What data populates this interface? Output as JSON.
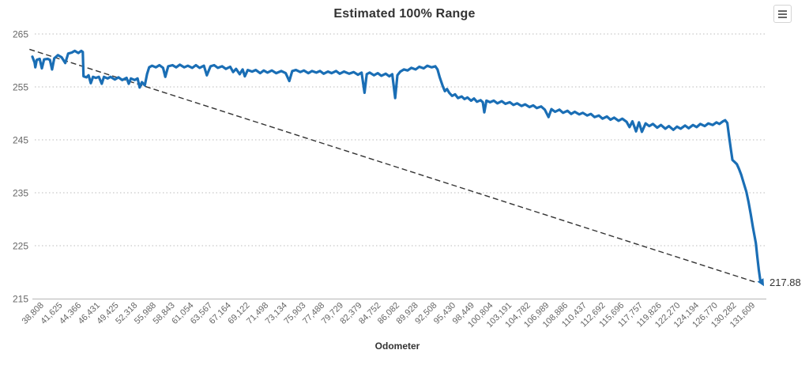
{
  "header": {
    "title": "Estimated 100% Range",
    "context_menu_tooltip": "Chart context menu"
  },
  "chart_data": {
    "type": "line",
    "title": "Estimated 100% Range",
    "xlabel": "Odometer",
    "ylabel": "",
    "ylim": [
      215,
      265
    ],
    "yticks": [
      265,
      255,
      245,
      235,
      225,
      215
    ],
    "grid": "dotted-horizontal",
    "legend": "none",
    "end_label": "217.88",
    "x_categories": [
      "38,808",
      "41,625",
      "44,366",
      "46,431",
      "49,425",
      "52,318",
      "55,988",
      "58,843",
      "61,054",
      "63,567",
      "67,164",
      "69,122",
      "71,498",
      "73,134",
      "75,903",
      "77,488",
      "79,729",
      "82,379",
      "84,752",
      "86,082",
      "89,928",
      "92,508",
      "95,430",
      "98,449",
      "100,804",
      "103,191",
      "104,782",
      "106,989",
      "108,886",
      "110,437",
      "112,692",
      "115,696",
      "117,757",
      "119,826",
      "122,270",
      "124,194",
      "126,770",
      "130,282",
      "131,609"
    ],
    "colors": {
      "series": "#1a6eb5",
      "trend": "#333333",
      "grid": "#bbbbbb",
      "axis_line": "#c0c0c0",
      "tick_text": "#666666",
      "title_text": "#333333"
    },
    "series": [
      {
        "name": "Estimated 100% Range",
        "style": "solid",
        "color": "#1a6eb5",
        "points_xfrac_value": [
          [
            0.0,
            260.7
          ],
          [
            0.003,
            259.6
          ],
          [
            0.004,
            258.7
          ],
          [
            0.006,
            260.1
          ],
          [
            0.01,
            260.3
          ],
          [
            0.013,
            258.5
          ],
          [
            0.016,
            260.2
          ],
          [
            0.021,
            260.3
          ],
          [
            0.024,
            260.1
          ],
          [
            0.027,
            258.3
          ],
          [
            0.03,
            260.4
          ],
          [
            0.035,
            261.0
          ],
          [
            0.04,
            260.6
          ],
          [
            0.045,
            259.5
          ],
          [
            0.049,
            261.3
          ],
          [
            0.054,
            261.5
          ],
          [
            0.058,
            261.8
          ],
          [
            0.063,
            261.4
          ],
          [
            0.067,
            261.8
          ],
          [
            0.069,
            261.6
          ],
          [
            0.07,
            257.0
          ],
          [
            0.074,
            256.8
          ],
          [
            0.077,
            257.2
          ],
          [
            0.08,
            255.7
          ],
          [
            0.083,
            256.9
          ],
          [
            0.087,
            256.7
          ],
          [
            0.091,
            256.9
          ],
          [
            0.095,
            255.6
          ],
          [
            0.098,
            256.9
          ],
          [
            0.103,
            256.6
          ],
          [
            0.107,
            256.9
          ],
          [
            0.113,
            256.4
          ],
          [
            0.118,
            256.8
          ],
          [
            0.123,
            256.3
          ],
          [
            0.129,
            256.7
          ],
          [
            0.132,
            255.6
          ],
          [
            0.135,
            256.6
          ],
          [
            0.14,
            256.3
          ],
          [
            0.144,
            256.6
          ],
          [
            0.147,
            254.9
          ],
          [
            0.15,
            255.9
          ],
          [
            0.154,
            255.3
          ],
          [
            0.157,
            257.4
          ],
          [
            0.16,
            258.7
          ],
          [
            0.164,
            259.0
          ],
          [
            0.169,
            258.7
          ],
          [
            0.174,
            259.1
          ],
          [
            0.179,
            258.6
          ],
          [
            0.182,
            256.9
          ],
          [
            0.186,
            258.9
          ],
          [
            0.192,
            259.1
          ],
          [
            0.197,
            258.7
          ],
          [
            0.202,
            259.2
          ],
          [
            0.208,
            258.7
          ],
          [
            0.213,
            259.0
          ],
          [
            0.219,
            258.6
          ],
          [
            0.224,
            259.1
          ],
          [
            0.229,
            258.6
          ],
          [
            0.235,
            259.0
          ],
          [
            0.239,
            257.2
          ],
          [
            0.244,
            258.9
          ],
          [
            0.249,
            259.1
          ],
          [
            0.254,
            258.6
          ],
          [
            0.26,
            258.9
          ],
          [
            0.265,
            258.4
          ],
          [
            0.271,
            258.8
          ],
          [
            0.275,
            257.8
          ],
          [
            0.279,
            258.4
          ],
          [
            0.284,
            257.4
          ],
          [
            0.288,
            258.3
          ],
          [
            0.291,
            257.0
          ],
          [
            0.295,
            258.2
          ],
          [
            0.301,
            257.9
          ],
          [
            0.306,
            258.2
          ],
          [
            0.312,
            257.6
          ],
          [
            0.317,
            258.1
          ],
          [
            0.322,
            257.7
          ],
          [
            0.328,
            258.1
          ],
          [
            0.334,
            257.6
          ],
          [
            0.341,
            258.0
          ],
          [
            0.347,
            257.6
          ],
          [
            0.352,
            256.1
          ],
          [
            0.356,
            258.0
          ],
          [
            0.361,
            258.2
          ],
          [
            0.367,
            257.8
          ],
          [
            0.372,
            258.1
          ],
          [
            0.378,
            257.6
          ],
          [
            0.383,
            258.0
          ],
          [
            0.389,
            257.7
          ],
          [
            0.394,
            258.0
          ],
          [
            0.399,
            257.5
          ],
          [
            0.405,
            257.9
          ],
          [
            0.41,
            257.6
          ],
          [
            0.416,
            258.0
          ],
          [
            0.421,
            257.5
          ],
          [
            0.427,
            257.9
          ],
          [
            0.434,
            257.5
          ],
          [
            0.44,
            257.8
          ],
          [
            0.446,
            257.3
          ],
          [
            0.451,
            257.7
          ],
          [
            0.455,
            253.9
          ],
          [
            0.458,
            257.4
          ],
          [
            0.462,
            257.7
          ],
          [
            0.468,
            257.2
          ],
          [
            0.473,
            257.6
          ],
          [
            0.478,
            257.1
          ],
          [
            0.484,
            257.5
          ],
          [
            0.489,
            257.0
          ],
          [
            0.493,
            257.4
          ],
          [
            0.497,
            252.9
          ],
          [
            0.5,
            257.2
          ],
          [
            0.504,
            257.9
          ],
          [
            0.509,
            258.3
          ],
          [
            0.514,
            258.1
          ],
          [
            0.519,
            258.6
          ],
          [
            0.525,
            258.3
          ],
          [
            0.53,
            258.8
          ],
          [
            0.536,
            258.5
          ],
          [
            0.541,
            259.0
          ],
          [
            0.547,
            258.7
          ],
          [
            0.552,
            258.9
          ],
          [
            0.555,
            258.3
          ],
          [
            0.558,
            256.8
          ],
          [
            0.562,
            255.2
          ],
          [
            0.565,
            254.2
          ],
          [
            0.568,
            254.6
          ],
          [
            0.571,
            253.9
          ],
          [
            0.575,
            253.3
          ],
          [
            0.579,
            253.6
          ],
          [
            0.583,
            252.9
          ],
          [
            0.588,
            253.2
          ],
          [
            0.592,
            252.7
          ],
          [
            0.596,
            253.0
          ],
          [
            0.601,
            252.4
          ],
          [
            0.605,
            252.8
          ],
          [
            0.609,
            252.2
          ],
          [
            0.614,
            252.5
          ],
          [
            0.617,
            252.1
          ],
          [
            0.619,
            250.2
          ],
          [
            0.622,
            252.4
          ],
          [
            0.627,
            252.1
          ],
          [
            0.632,
            252.4
          ],
          [
            0.637,
            251.9
          ],
          [
            0.643,
            252.3
          ],
          [
            0.648,
            251.8
          ],
          [
            0.654,
            252.1
          ],
          [
            0.659,
            251.6
          ],
          [
            0.664,
            251.9
          ],
          [
            0.67,
            251.4
          ],
          [
            0.675,
            251.7
          ],
          [
            0.681,
            251.2
          ],
          [
            0.686,
            251.5
          ],
          [
            0.691,
            251.0
          ],
          [
            0.697,
            251.3
          ],
          [
            0.702,
            250.7
          ],
          [
            0.707,
            249.3
          ],
          [
            0.711,
            250.8
          ],
          [
            0.716,
            250.3
          ],
          [
            0.722,
            250.7
          ],
          [
            0.727,
            250.1
          ],
          [
            0.733,
            250.5
          ],
          [
            0.738,
            249.9
          ],
          [
            0.743,
            250.3
          ],
          [
            0.749,
            249.8
          ],
          [
            0.754,
            250.1
          ],
          [
            0.76,
            249.6
          ],
          [
            0.765,
            249.9
          ],
          [
            0.77,
            249.3
          ],
          [
            0.776,
            249.6
          ],
          [
            0.781,
            249.0
          ],
          [
            0.787,
            249.4
          ],
          [
            0.792,
            248.8
          ],
          [
            0.797,
            249.2
          ],
          [
            0.803,
            248.6
          ],
          [
            0.808,
            249.0
          ],
          [
            0.814,
            248.4
          ],
          [
            0.818,
            247.4
          ],
          [
            0.822,
            248.5
          ],
          [
            0.827,
            246.6
          ],
          [
            0.831,
            248.3
          ],
          [
            0.835,
            246.5
          ],
          [
            0.84,
            248.1
          ],
          [
            0.845,
            247.6
          ],
          [
            0.85,
            248.0
          ],
          [
            0.856,
            247.3
          ],
          [
            0.861,
            247.8
          ],
          [
            0.867,
            247.1
          ],
          [
            0.872,
            247.6
          ],
          [
            0.878,
            246.9
          ],
          [
            0.883,
            247.5
          ],
          [
            0.888,
            247.1
          ],
          [
            0.894,
            247.7
          ],
          [
            0.899,
            247.2
          ],
          [
            0.905,
            247.8
          ],
          [
            0.91,
            247.4
          ],
          [
            0.915,
            248.0
          ],
          [
            0.921,
            247.6
          ],
          [
            0.926,
            248.1
          ],
          [
            0.932,
            247.8
          ],
          [
            0.937,
            248.3
          ],
          [
            0.941,
            248.0
          ],
          [
            0.946,
            248.5
          ],
          [
            0.949,
            248.7
          ],
          [
            0.952,
            248.2
          ],
          [
            0.954,
            246.0
          ],
          [
            0.957,
            243.0
          ],
          [
            0.959,
            241.2
          ],
          [
            0.962,
            240.8
          ],
          [
            0.965,
            240.4
          ],
          [
            0.968,
            239.5
          ],
          [
            0.971,
            238.4
          ],
          [
            0.974,
            237.0
          ],
          [
            0.978,
            235.2
          ],
          [
            0.981,
            233.3
          ],
          [
            0.984,
            231.0
          ],
          [
            0.987,
            228.5
          ],
          [
            0.991,
            225.5
          ],
          [
            0.993,
            223.0
          ],
          [
            0.995,
            220.5
          ],
          [
            0.997,
            218.6
          ],
          [
            1.0,
            217.88
          ]
        ]
      },
      {
        "name": "Trend",
        "style": "dashed",
        "color": "#333333",
        "points_xfrac_value": [
          [
            -0.004,
            262.1
          ],
          [
            0.993,
            218.0
          ]
        ]
      }
    ]
  }
}
